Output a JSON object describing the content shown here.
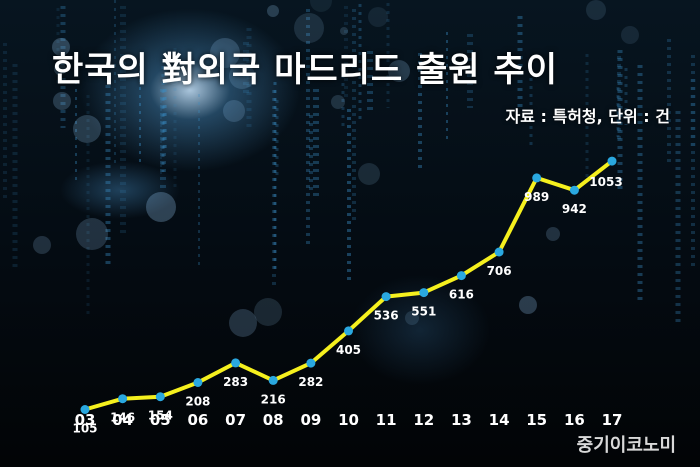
{
  "header": {
    "title": "한국의 對외국 마드리드 출원 추이",
    "source": "자료 : 특허청, 단위 : 건"
  },
  "brand": "중기이코노미",
  "colors": {
    "line": "#f5f01e",
    "marker": "#2aa8e0",
    "background": "#03080d"
  },
  "chart_data": {
    "type": "line",
    "title": "한국의 對외국 마드리드 출원 추이",
    "categories": [
      "03",
      "04",
      "05",
      "06",
      "07",
      "08",
      "09",
      "10",
      "11",
      "12",
      "13",
      "14",
      "15",
      "16",
      "17"
    ],
    "series": [
      {
        "values": [
          105,
          146,
          154,
          208,
          283,
          216,
          282,
          405,
          536,
          551,
          616,
          706,
          989,
          942,
          1053
        ]
      }
    ],
    "ylim": [
      0,
      1100
    ],
    "grid": false,
    "legend": "none"
  }
}
